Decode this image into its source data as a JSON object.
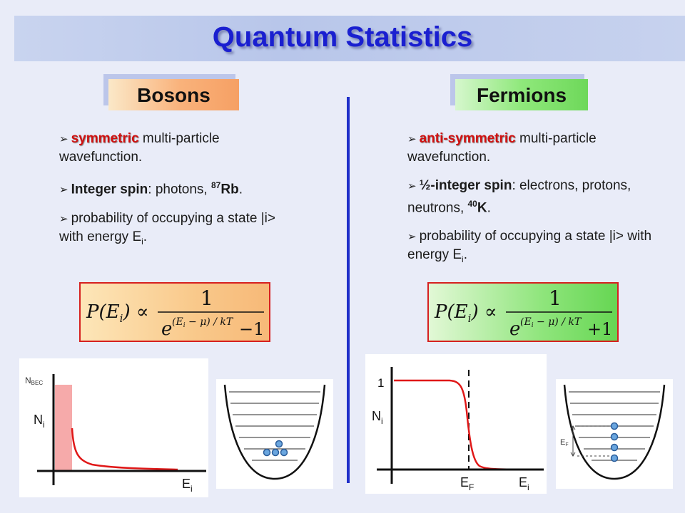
{
  "title": "Quantum Statistics",
  "bosons": {
    "header": "Bosons",
    "b1_red": "symmetric",
    "b1_rest": " multi-particle wavefunction.",
    "b2_bold": "Integer spin",
    "b2_rest": ": photons, ",
    "b2_sup": "87",
    "b2_iso": "Rb",
    "b2_end": ".",
    "b3_text": "probability of occupying a state |i> with energy E",
    "b3_sub": "i",
    "b3_end": ".",
    "formula_sign": "−1",
    "plot": {
      "nbec_label": "N",
      "nbec_sub": "BEC",
      "y_label": "N",
      "y_sub": "i",
      "x_label": "E",
      "x_sub": "i"
    }
  },
  "fermions": {
    "header": "Fermions",
    "b1_red": "anti-symmetric",
    "b1_rest": " multi-particle wavefunction.",
    "b2_bold": "½-integer spin",
    "b2_rest": ": electrons, protons, neutrons, ",
    "b2_sup": "40",
    "b2_iso": "K",
    "b2_end": ".",
    "b3_text": "probability of occupying a state |i> with energy E",
    "b3_sub": "i",
    "b3_end": ".",
    "formula_sign": "+1",
    "plot": {
      "one_label": "1",
      "y_label": "N",
      "y_sub": "i",
      "ef_label": "E",
      "ef_sub": "F",
      "x_label": "E",
      "x_sub": "i"
    },
    "well_ef_label": "E",
    "well_ef_sub": "F"
  },
  "formula": {
    "lhs": "P(E",
    "lhs_sub": "i",
    "lhs_end": ") ∝",
    "numerator": "1",
    "exp_base": "e",
    "exp_power": "(E",
    "exp_power_sub": "i",
    "exp_power_end": " − μ) / kT"
  },
  "colors": {
    "title": "#1a1fd0",
    "divider": "#1f2fc9",
    "curve": "#e01818",
    "bec_bar": "#f6aaaa",
    "atom": "#6aa6df"
  },
  "icons": [
    "bullet-arrow-icon"
  ]
}
